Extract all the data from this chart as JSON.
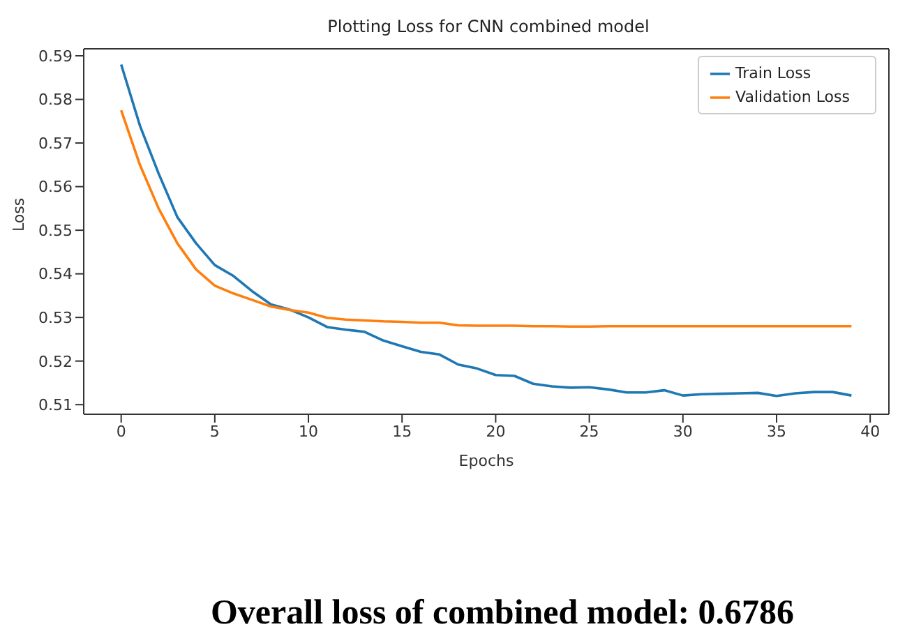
{
  "chart_data": {
    "type": "line",
    "title": "Plotting Loss for CNN combined model",
    "xlabel": "Epochs",
    "ylabel": "Loss",
    "annotations": [
      "Overall loss of combined model: 0.6786"
    ],
    "x": [
      0,
      1,
      2,
      3,
      4,
      5,
      6,
      7,
      8,
      9,
      10,
      11,
      12,
      13,
      14,
      15,
      16,
      17,
      18,
      19,
      20,
      21,
      22,
      23,
      24,
      25,
      26,
      27,
      28,
      29,
      30,
      31,
      32,
      33,
      34,
      35,
      36,
      37,
      38,
      39
    ],
    "series": [
      {
        "name": "Train Loss",
        "color": "#1f77b4",
        "values": [
          0.588,
          0.574,
          0.563,
          0.553,
          0.547,
          0.542,
          0.5395,
          0.536,
          0.533,
          0.5318,
          0.53,
          0.5278,
          0.5272,
          0.5267,
          0.5247,
          0.5234,
          0.5221,
          0.5215,
          0.5192,
          0.5183,
          0.5168,
          0.5166,
          0.5148,
          0.5142,
          0.5139,
          0.514,
          0.5135,
          0.5128,
          0.5128,
          0.5133,
          0.5121,
          0.5124,
          0.5125,
          0.5126,
          0.5127,
          0.512,
          0.5126,
          0.5129,
          0.5129,
          0.5121
        ]
      },
      {
        "name": "Validation Loss",
        "color": "#ff7f0e",
        "values": [
          0.5775,
          0.565,
          0.555,
          0.547,
          0.541,
          0.5373,
          0.5355,
          0.534,
          0.5325,
          0.5317,
          0.5311,
          0.5299,
          0.5295,
          0.5293,
          0.5291,
          0.529,
          0.5288,
          0.5288,
          0.5282,
          0.5281,
          0.5281,
          0.5281,
          0.528,
          0.528,
          0.5279,
          0.5279,
          0.528,
          0.528,
          0.528,
          0.528,
          0.528,
          0.528,
          0.528,
          0.528,
          0.528,
          0.528,
          0.528,
          0.528,
          0.528,
          0.528
        ]
      }
    ],
    "xlim": [
      -2,
      41
    ],
    "ylim": [
      0.5078,
      0.5916
    ],
    "xticks": [
      0,
      5,
      10,
      15,
      20,
      25,
      30,
      35,
      40
    ],
    "yticks": [
      0.51,
      0.52,
      0.53,
      0.54,
      0.55,
      0.56,
      0.57,
      0.58,
      0.59
    ],
    "grid": false,
    "legend": "top right"
  }
}
